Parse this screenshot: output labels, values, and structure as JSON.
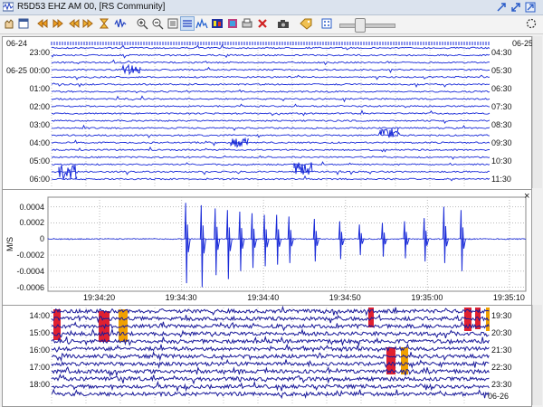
{
  "window": {
    "title": "R5D53 EHZ AM 00, [RS Community]"
  },
  "toolbar": {
    "icons": [
      "hand-icon",
      "window-icon",
      "rewind-icon",
      "fast-forward-icon",
      "step-back-icon",
      "step-forward-icon",
      "hourglass-icon",
      "zoom-in-icon",
      "zoom-out-icon",
      "list-icon",
      "waveform-icon",
      "spectrum-icon",
      "spectrogram-icon",
      "filter-icon",
      "print-icon",
      "close-red-icon",
      "camera-icon",
      "tag-icon",
      "dice-icon",
      "refresh-icon",
      "gear-icon"
    ]
  },
  "helicorder_top": {
    "date_left": "06-24",
    "date_right": "06-25",
    "left_times": [
      "23:00",
      "06-25 00:00",
      "01:00",
      "02:00",
      "03:00",
      "04:00",
      "05:00",
      "06:00"
    ],
    "right_times": [
      "04:30",
      "05:30",
      "06:30",
      "07:30",
      "08:30",
      "09:30",
      "10:30",
      "11:30"
    ],
    "trace_color": "#1a2bd8"
  },
  "waveform": {
    "ylabel": "M/S",
    "close_label": "×",
    "chart_data": {
      "type": "line",
      "xlabel": "",
      "ylabel": "M/S",
      "y_ticks": [
        "0.0004",
        "0.0002",
        "0",
        "-0.0002",
        "-0.0004",
        "-0.0006"
      ],
      "ylim": [
        -0.00065,
        0.00052
      ],
      "x_ticks": [
        "19:34:20",
        "19:34:30",
        "19:34:40",
        "19:34:50",
        "19:35:00",
        "19:35:10"
      ],
      "grid": true,
      "series": [
        {
          "color": "#1a2bd8",
          "spikes": [
            {
              "t": 30.5,
              "up": 0.00045,
              "down": -0.00055
            },
            {
              "t": 32.4,
              "up": 0.00042,
              "down": -0.0006
            },
            {
              "t": 34.1,
              "up": 0.00038,
              "down": -0.00045
            },
            {
              "t": 35.6,
              "up": 0.00036,
              "down": -0.0005
            },
            {
              "t": 37.1,
              "up": 0.00034,
              "down": -0.0004
            },
            {
              "t": 38.6,
              "up": 0.00032,
              "down": -0.00036
            },
            {
              "t": 40.1,
              "up": 0.0003,
              "down": -0.00034
            },
            {
              "t": 41.6,
              "up": 0.0003,
              "down": -0.00032
            },
            {
              "t": 43.1,
              "up": 0.00028,
              "down": -0.0003
            },
            {
              "t": 46.2,
              "up": 0.00025,
              "down": -0.00028
            },
            {
              "t": 49.3,
              "up": 0.00022,
              "down": -0.00025
            },
            {
              "t": 51.7,
              "up": 0.00018,
              "down": -0.0002
            },
            {
              "t": 54.5,
              "up": 0.0002,
              "down": -0.00022
            },
            {
              "t": 57.2,
              "up": 0.00022,
              "down": -0.00024
            },
            {
              "t": 59.6,
              "up": 0.00026,
              "down": -0.00028
            },
            {
              "t": 62.0,
              "up": 0.0004,
              "down": -0.0003
            },
            {
              "t": 64.1,
              "up": 0.00036,
              "down": -0.0004
            }
          ]
        }
      ]
    }
  },
  "helicorder_bottom": {
    "left_times": [
      "14:00",
      "15:00",
      "16:00",
      "17:00",
      "18:00"
    ],
    "right_times": [
      "19:30",
      "20:30",
      "21:30",
      "22:30",
      "23:30"
    ],
    "date_right": "06-26",
    "trace_color": "#1a1a9a"
  }
}
